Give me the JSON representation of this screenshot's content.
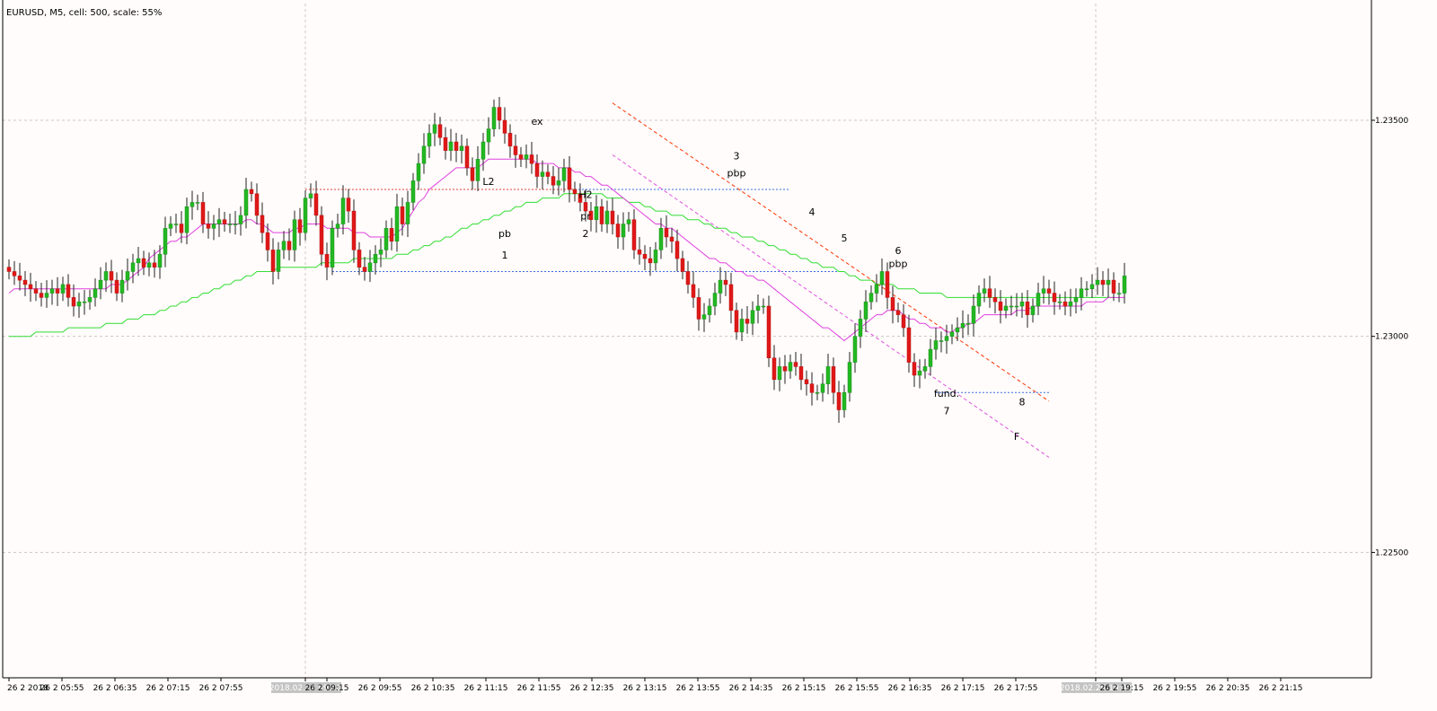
{
  "window": {
    "title": "EURUSD, M5, cell: 500, scale: 55%"
  },
  "colors": {
    "background": "#fffcfb",
    "bull": "#22b822",
    "bear": "#e01818",
    "wick": "#222222",
    "ema_fast": "#e040e0",
    "ema_slow": "#33dd33",
    "grid": "#c8c8c8",
    "level_red": "#e04040",
    "level_blue": "#3a6fe0",
    "channel_red": "#ff3300",
    "channel_pink": "#e050e0"
  },
  "chart_data": {
    "type": "candlestick",
    "symbol": "EURUSD",
    "timeframe": "M5",
    "ylim": [
      1.2221,
      1.2377
    ],
    "y_ticks": [
      "1.23500",
      "1.23000",
      "1.22500"
    ],
    "y_tick_values": [
      1.235,
      1.23,
      1.225
    ],
    "x_ticks": [
      "26 2 2018",
      "26 2 05:55",
      "26 2 06:35",
      "26 2 07:15",
      "26 2 07:55",
      "2018.02.26 09:00",
      "26 2 09:15",
      "26 2 09:55",
      "26 2 10:35",
      "26 2 11:15",
      "26 2 11:55",
      "26 2 12:35",
      "26 2 13:15",
      "26 2 13:55",
      "26 2 14:35",
      "26 2 15:15",
      "26 2 15:55",
      "26 2 16:35",
      "26 2 17:15",
      "26 2 17:55",
      "2018.02.26 19:00",
      "26 2 19:15",
      "26 2 19:55",
      "26 2 20:35",
      "26 2 21:15"
    ],
    "x_tick_highlighted": [
      false,
      false,
      false,
      false,
      false,
      true,
      false,
      false,
      false,
      false,
      false,
      false,
      false,
      false,
      false,
      false,
      false,
      false,
      false,
      false,
      true,
      false,
      false,
      false,
      false
    ],
    "candles_close": [
      1.2315,
      1.2314,
      1.2313,
      1.2312,
      1.2311,
      1.231,
      1.2309,
      1.231,
      1.2311,
      1.231,
      1.2312,
      1.2309,
      1.2307,
      1.2308,
      1.2308,
      1.2309,
      1.2311,
      1.2313,
      1.2315,
      1.2313,
      1.231,
      1.2313,
      1.2315,
      1.2317,
      1.2318,
      1.2316,
      1.2317,
      1.2316,
      1.2319,
      1.2325,
      1.2326,
      1.2326,
      1.2324,
      1.233,
      1.2331,
      1.2331,
      1.2326,
      1.2325,
      1.2326,
      1.2327,
      1.2326,
      1.2326,
      1.2326,
      1.2328,
      1.2334,
      1.2333,
      1.2328,
      1.2324,
      1.232,
      1.2315,
      1.232,
      1.2322,
      1.232,
      1.2327,
      1.2324,
      1.2332,
      1.2333,
      1.2328,
      1.2319,
      1.2316,
      1.2325,
      1.2326,
      1.2332,
      1.2329,
      1.232,
      1.2316,
      1.2315,
      1.2317,
      1.2319,
      1.232,
      1.2325,
      1.2322,
      1.233,
      1.2326,
      1.2331,
      1.2336,
      1.234,
      1.2344,
      1.2347,
      1.2349,
      1.2346,
      1.2343,
      1.2345,
      1.2343,
      1.2344,
      1.2339,
      1.2336,
      1.2341,
      1.2345,
      1.2348,
      1.2353,
      1.235,
      1.2347,
      1.2344,
      1.2342,
      1.2341,
      1.2342,
      1.234,
      1.2337,
      1.2338,
      1.2337,
      1.2335,
      1.2336,
      1.2339,
      1.2334,
      1.2333,
      1.2331,
      1.2329,
      1.2327,
      1.233,
      1.2326,
      1.2329,
      1.2326,
      1.2323,
      1.2326,
      1.2327,
      1.232,
      1.2319,
      1.2318,
      1.2317,
      1.232,
      1.2325,
      1.2323,
      1.2322,
      1.2318,
      1.2315,
      1.2312,
      1.2309,
      1.2304,
      1.2305,
      1.2307,
      1.231,
      1.2313,
      1.2312,
      1.2306,
      1.2301,
      1.2304,
      1.2303,
      1.2306,
      1.2307,
      1.2307,
      1.2295,
      1.229,
      1.2293,
      1.2292,
      1.2294,
      1.2293,
      1.229,
      1.2289,
      1.2287,
      1.2287,
      1.2289,
      1.2293,
      1.2287,
      1.2283,
      1.2287,
      1.2294,
      1.23,
      1.2304,
      1.2308,
      1.231,
      1.2312,
      1.2315,
      1.2309,
      1.2306,
      1.2305,
      1.2302,
      1.2294,
      1.2291,
      1.2292,
      1.2293,
      1.2297,
      1.2299,
      1.2299,
      1.23,
      1.2301,
      1.2302,
      1.2303,
      1.2303,
      1.2307,
      1.231,
      1.2311,
      1.2309,
      1.2308,
      1.2306,
      1.2307,
      1.2307,
      1.2307,
      1.2308,
      1.2305,
      1.2307,
      1.231,
      1.2311,
      1.231,
      1.2308,
      1.2308,
      1.2307,
      1.2308,
      1.2309,
      1.2311,
      1.2311,
      1.2312,
      1.2313,
      1.2312,
      1.2313,
      1.231,
      1.231,
      1.2314
    ],
    "ema_fast_values": [
      1.231,
      1.2311,
      1.2311,
      1.2311,
      1.2311,
      1.2311,
      1.2311,
      1.2311,
      1.2311,
      1.2311,
      1.2311,
      1.2311,
      1.2311,
      1.2311,
      1.2311,
      1.2311,
      1.2311,
      1.2311,
      1.2311,
      1.2312,
      1.2312,
      1.2312,
      1.2313,
      1.2314,
      1.2315,
      1.2316,
      1.2318,
      1.2319,
      1.232,
      1.2321,
      1.2322,
      1.2322,
      1.2323,
      1.2323,
      1.2324,
      1.2325,
      1.2326,
      1.2326,
      1.2326,
      1.2326,
      1.2326,
      1.2326,
      1.2326,
      1.2326,
      1.2327,
      1.2327,
      1.2326,
      1.2326,
      1.2325,
      1.2324,
      1.2324,
      1.2324,
      1.2324,
      1.2325,
      1.2325,
      1.2326,
      1.2326,
      1.2326,
      1.2326,
      1.2325,
      1.2325,
      1.2325,
      1.2325,
      1.2325,
      1.2324,
      1.2324,
      1.2324,
      1.2323,
      1.2323,
      1.2323,
      1.2323,
      1.2323,
      1.2324,
      1.2325,
      1.2327,
      1.2329,
      1.2331,
      1.2332,
      1.2334,
      1.2335,
      1.2336,
      1.2337,
      1.2338,
      1.2339,
      1.2339,
      1.2339,
      1.2339,
      1.2339,
      1.234,
      1.2341,
      1.2341,
      1.2341,
      1.2341,
      1.2341,
      1.2341,
      1.2341,
      1.2341,
      1.2341,
      1.234,
      1.234,
      1.234,
      1.234,
      1.2339,
      1.2339,
      1.2339,
      1.2338,
      1.2338,
      1.2337,
      1.2337,
      1.2336,
      1.2335,
      1.2335,
      1.2334,
      1.2333,
      1.2332,
      1.2331,
      1.233,
      1.2329,
      1.2328,
      1.2327,
      1.2326,
      1.2326,
      1.2325,
      1.2325,
      1.2324,
      1.2323,
      1.2322,
      1.2321,
      1.232,
      1.2319,
      1.2318,
      1.2318,
      1.2317,
      1.2317,
      1.2316,
      1.2315,
      1.2315,
      1.2314,
      1.2314,
      1.2313,
      1.2313,
      1.2312,
      1.2311,
      1.231,
      1.2309,
      1.2308,
      1.2307,
      1.2306,
      1.2305,
      1.2304,
      1.2303,
      1.2302,
      1.2302,
      1.2301,
      1.23,
      1.2299,
      1.23,
      1.2301,
      1.2302,
      1.2303,
      1.2304,
      1.2305,
      1.2305,
      1.2306,
      1.2306,
      1.2306,
      1.2305,
      1.2304,
      1.2304,
      1.2303,
      1.2303,
      1.2302,
      1.2302,
      1.2302,
      1.2301,
      1.2301,
      1.2302,
      1.2302,
      1.2303,
      1.2303,
      1.2304,
      1.2305,
      1.2305,
      1.2305,
      1.2305,
      1.2305,
      1.2305,
      1.2306,
      1.2306,
      1.2306,
      1.2307,
      1.2307,
      1.2307,
      1.2307,
      1.2307,
      1.2307,
      1.2307,
      1.2307,
      1.2307,
      1.2307,
      1.2308,
      1.2308,
      1.2308,
      1.2308,
      1.2309,
      1.2309,
      1.2309,
      1.2309
    ],
    "ema_slow_values": [
      1.23,
      1.23,
      1.23,
      1.23,
      1.23,
      1.2301,
      1.2301,
      1.2301,
      1.2301,
      1.2301,
      1.2301,
      1.2302,
      1.2302,
      1.2302,
      1.2302,
      1.2302,
      1.2302,
      1.2302,
      1.2303,
      1.2303,
      1.2303,
      1.2303,
      1.2304,
      1.2304,
      1.2304,
      1.2305,
      1.2305,
      1.2305,
      1.2306,
      1.2306,
      1.2307,
      1.2307,
      1.2308,
      1.2308,
      1.2309,
      1.2309,
      1.231,
      1.231,
      1.2311,
      1.2311,
      1.2312,
      1.2312,
      1.2313,
      1.2313,
      1.2314,
      1.2314,
      1.2315,
      1.2315,
      1.2315,
      1.2315,
      1.2316,
      1.2316,
      1.2316,
      1.2316,
      1.2316,
      1.2316,
      1.2316,
      1.2316,
      1.2317,
      1.2317,
      1.2317,
      1.2317,
      1.2317,
      1.2317,
      1.2318,
      1.2318,
      1.2318,
      1.2318,
      1.2318,
      1.2318,
      1.2318,
      1.2318,
      1.2319,
      1.2319,
      1.2319,
      1.232,
      1.232,
      1.2321,
      1.2321,
      1.2322,
      1.2322,
      1.2323,
      1.2323,
      1.2324,
      1.2325,
      1.2325,
      1.2326,
      1.2326,
      1.2327,
      1.2327,
      1.2328,
      1.2328,
      1.2329,
      1.2329,
      1.233,
      1.233,
      1.2331,
      1.2331,
      1.2331,
      1.2332,
      1.2332,
      1.2332,
      1.2332,
      1.2333,
      1.2333,
      1.2333,
      1.2333,
      1.2333,
      1.2333,
      1.2333,
      1.2333,
      1.2332,
      1.2332,
      1.2332,
      1.2332,
      1.2331,
      1.2331,
      1.2331,
      1.233,
      1.233,
      1.2329,
      1.2329,
      1.2329,
      1.2328,
      1.2328,
      1.2328,
      1.2327,
      1.2327,
      1.2327,
      1.2326,
      1.2326,
      1.2325,
      1.2325,
      1.2325,
      1.2324,
      1.2324,
      1.2323,
      1.2323,
      1.2323,
      1.2322,
      1.2322,
      1.2321,
      1.2321,
      1.232,
      1.232,
      1.2319,
      1.2319,
      1.2318,
      1.2318,
      1.2317,
      1.2317,
      1.2316,
      1.2316,
      1.2316,
      1.2315,
      1.2315,
      1.2314,
      1.2314,
      1.2313,
      1.2313,
      1.2313,
      1.2312,
      1.2312,
      1.2312,
      1.2312,
      1.2311,
      1.2311,
      1.2311,
      1.2311,
      1.231,
      1.231,
      1.231,
      1.231,
      1.231,
      1.2309,
      1.2309,
      1.2309,
      1.2309,
      1.2309,
      1.2309,
      1.2309,
      1.2309,
      1.2309,
      1.2309,
      1.2309,
      1.2309,
      1.2309,
      1.2309,
      1.2309,
      1.2309,
      1.2309,
      1.2309,
      1.2309,
      1.2309,
      1.2309,
      1.2309,
      1.2309,
      1.2309,
      1.2309,
      1.2309,
      1.2309,
      1.2309,
      1.2309,
      1.2309,
      1.2309,
      1.2309
    ],
    "horizontal_levels": [
      {
        "price": 1.2334,
        "color": "red",
        "from_bar": 55,
        "to_bar": 145
      },
      {
        "price": 1.2334,
        "color": "blue",
        "from_bar": 105,
        "to_bar": 145
      },
      {
        "price": 1.2315,
        "color": "blue",
        "from_bar": 60,
        "to_bar": 155
      },
      {
        "price": 1.2287,
        "color": "blue",
        "from_bar": 172,
        "to_bar": 193
      }
    ],
    "trend_lines": [
      {
        "color": "red",
        "from": [
          112,
          1.2354
        ],
        "to": [
          193,
          1.2285
        ]
      },
      {
        "color": "pink",
        "from": [
          112,
          1.2342
        ],
        "to": [
          193,
          1.2272
        ]
      }
    ],
    "annotations": [
      {
        "text": "ex",
        "bar": 98,
        "price": 1.2349
      },
      {
        "text": "L2",
        "bar": 89,
        "price": 1.2335
      },
      {
        "text": "H2",
        "bar": 107,
        "price": 1.2332
      },
      {
        "text": "pr",
        "bar": 107,
        "price": 1.2327
      },
      {
        "text": "2",
        "bar": 107,
        "price": 1.2323
      },
      {
        "text": "pb",
        "bar": 92,
        "price": 1.2323
      },
      {
        "text": "1",
        "bar": 92,
        "price": 1.2318
      },
      {
        "text": "3",
        "bar": 135,
        "price": 1.2341
      },
      {
        "text": "pbp",
        "bar": 135,
        "price": 1.2337
      },
      {
        "text": "4",
        "bar": 149,
        "price": 1.2328
      },
      {
        "text": "5",
        "bar": 155,
        "price": 1.2322
      },
      {
        "text": "6",
        "bar": 165,
        "price": 1.2319
      },
      {
        "text": "pbp",
        "bar": 165,
        "price": 1.2316
      },
      {
        "text": "fund.",
        "bar": 174,
        "price": 1.2286
      },
      {
        "text": "7",
        "bar": 174,
        "price": 1.2282
      },
      {
        "text": "8",
        "bar": 188,
        "price": 1.2284
      },
      {
        "text": "F",
        "bar": 187,
        "price": 1.2276
      }
    ]
  }
}
